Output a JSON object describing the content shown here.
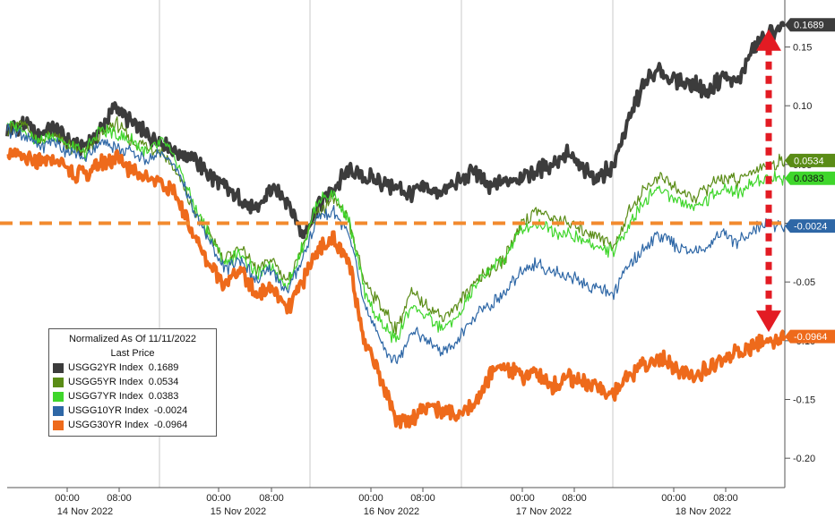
{
  "chart_data": {
    "type": "line",
    "legend": {
      "title": "Normalized As Of 11/11/2022",
      "subtitle": "Last Price",
      "placement": "bottom-left"
    },
    "x_ticks": {
      "time_labels": [
        "00:00",
        "08:00",
        "00:00",
        "08:00",
        "00:00",
        "08:00",
        "00:00",
        "08:00",
        "00:00",
        "08:00"
      ],
      "date_labels": [
        "14 Nov 2022",
        "15 Nov 2022",
        "16 Nov 2022",
        "17 Nov 2022",
        "18 Nov 2022"
      ]
    },
    "y_ticks": [
      "0.15",
      "0.10",
      "0.05",
      "0",
      "-0.05",
      "-0.10",
      "-0.15",
      "-0.20"
    ],
    "y_tick_values": [
      0.15,
      0.1,
      0.05,
      0,
      -0.05,
      -0.1,
      -0.15,
      -0.2
    ],
    "ylim": [
      -0.225,
      0.19
    ],
    "grid": "vertical at day boundaries",
    "reference_line": {
      "value": 0,
      "color": "#F28A2E",
      "style": "dashed"
    },
    "annotation": "red dotted double-headed arrow spanning 30YR to 2YR last values",
    "series": [
      {
        "name": "USGG2YR Index",
        "last": "0.1689",
        "color": "#3C3C3C",
        "x": [
          0,
          0.02,
          0.04,
          0.06,
          0.08,
          0.1,
          0.12,
          0.14,
          0.16,
          0.18,
          0.2,
          0.22,
          0.24,
          0.26,
          0.28,
          0.3,
          0.32,
          0.34,
          0.36,
          0.38,
          0.4,
          0.42,
          0.44,
          0.46,
          0.48,
          0.5,
          0.52,
          0.54,
          0.56,
          0.58,
          0.6,
          0.62,
          0.64,
          0.66,
          0.68,
          0.7,
          0.72,
          0.74,
          0.76,
          0.78,
          0.8,
          0.82,
          0.84,
          0.86,
          0.88,
          0.9,
          0.92,
          0.94,
          0.96,
          0.98,
          1.0
        ],
        "y": [
          0.08,
          0.085,
          0.075,
          0.08,
          0.07,
          0.065,
          0.08,
          0.1,
          0.085,
          0.075,
          0.07,
          0.06,
          0.055,
          0.04,
          0.03,
          0.02,
          0.01,
          0.03,
          0.02,
          -0.01,
          0.015,
          0.03,
          0.045,
          0.04,
          0.035,
          0.03,
          0.025,
          0.03,
          0.025,
          0.035,
          0.045,
          0.03,
          0.035,
          0.04,
          0.045,
          0.05,
          0.06,
          0.045,
          0.04,
          0.05,
          0.09,
          0.12,
          0.13,
          0.12,
          0.12,
          0.11,
          0.125,
          0.12,
          0.15,
          0.16,
          0.1689
        ]
      },
      {
        "name": "USGG5YR Index",
        "last": "0.0534",
        "color": "#5A8C16",
        "x": [
          0,
          0.02,
          0.04,
          0.06,
          0.08,
          0.1,
          0.12,
          0.14,
          0.16,
          0.18,
          0.2,
          0.22,
          0.24,
          0.26,
          0.28,
          0.3,
          0.32,
          0.34,
          0.36,
          0.38,
          0.4,
          0.42,
          0.44,
          0.46,
          0.48,
          0.5,
          0.52,
          0.54,
          0.56,
          0.58,
          0.6,
          0.62,
          0.64,
          0.66,
          0.68,
          0.7,
          0.72,
          0.74,
          0.76,
          0.78,
          0.8,
          0.82,
          0.84,
          0.86,
          0.88,
          0.9,
          0.92,
          0.94,
          0.96,
          0.98,
          1.0
        ],
        "y": [
          0.08,
          0.085,
          0.07,
          0.075,
          0.065,
          0.06,
          0.075,
          0.085,
          0.07,
          0.065,
          0.06,
          0.04,
          0.01,
          -0.01,
          -0.03,
          -0.02,
          -0.04,
          -0.03,
          -0.05,
          -0.02,
          0.01,
          0.02,
          0.0,
          -0.05,
          -0.07,
          -0.09,
          -0.06,
          -0.07,
          -0.08,
          -0.07,
          -0.05,
          -0.04,
          -0.03,
          0.0,
          0.01,
          0.005,
          0.0,
          -0.005,
          -0.01,
          -0.02,
          0.01,
          0.03,
          0.04,
          0.03,
          0.02,
          0.03,
          0.04,
          0.035,
          0.045,
          0.05,
          0.0534
        ]
      },
      {
        "name": "USGG7YR Index",
        "last": "0.0383",
        "color": "#3FD62B",
        "x": [
          0,
          0.02,
          0.04,
          0.06,
          0.08,
          0.1,
          0.12,
          0.14,
          0.16,
          0.18,
          0.2,
          0.22,
          0.24,
          0.26,
          0.28,
          0.3,
          0.32,
          0.34,
          0.36,
          0.38,
          0.4,
          0.42,
          0.44,
          0.46,
          0.48,
          0.5,
          0.52,
          0.54,
          0.56,
          0.58,
          0.6,
          0.62,
          0.64,
          0.66,
          0.68,
          0.7,
          0.72,
          0.74,
          0.76,
          0.78,
          0.8,
          0.82,
          0.84,
          0.86,
          0.88,
          0.9,
          0.92,
          0.94,
          0.96,
          0.98,
          1.0
        ],
        "y": [
          0.085,
          0.08,
          0.07,
          0.075,
          0.065,
          0.06,
          0.08,
          0.075,
          0.07,
          0.06,
          0.07,
          0.05,
          0.015,
          -0.01,
          -0.035,
          -0.025,
          -0.045,
          -0.035,
          -0.055,
          -0.02,
          0.02,
          0.025,
          0.0,
          -0.06,
          -0.085,
          -0.1,
          -0.07,
          -0.08,
          -0.09,
          -0.08,
          -0.055,
          -0.04,
          -0.03,
          -0.005,
          0.0,
          -0.005,
          -0.01,
          -0.015,
          -0.02,
          -0.025,
          0.0,
          0.02,
          0.03,
          0.02,
          0.015,
          0.02,
          0.03,
          0.025,
          0.035,
          0.04,
          0.0383
        ]
      },
      {
        "name": "USGG10YR Index",
        "last": "-0.0024",
        "color": "#2E67A6",
        "x": [
          0,
          0.02,
          0.04,
          0.06,
          0.08,
          0.1,
          0.12,
          0.14,
          0.16,
          0.18,
          0.2,
          0.22,
          0.24,
          0.26,
          0.28,
          0.3,
          0.32,
          0.34,
          0.36,
          0.38,
          0.4,
          0.42,
          0.44,
          0.46,
          0.48,
          0.5,
          0.52,
          0.54,
          0.56,
          0.58,
          0.6,
          0.62,
          0.64,
          0.66,
          0.68,
          0.7,
          0.72,
          0.74,
          0.76,
          0.78,
          0.8,
          0.82,
          0.84,
          0.86,
          0.88,
          0.9,
          0.92,
          0.94,
          0.96,
          0.98,
          1.0
        ],
        "y": [
          0.08,
          0.075,
          0.065,
          0.07,
          0.06,
          0.055,
          0.07,
          0.065,
          0.06,
          0.055,
          0.06,
          0.045,
          0.01,
          -0.015,
          -0.04,
          -0.03,
          -0.05,
          -0.04,
          -0.06,
          -0.03,
          0.005,
          0.01,
          -0.01,
          -0.07,
          -0.1,
          -0.12,
          -0.09,
          -0.1,
          -0.11,
          -0.1,
          -0.08,
          -0.07,
          -0.06,
          -0.04,
          -0.035,
          -0.04,
          -0.045,
          -0.05,
          -0.055,
          -0.06,
          -0.035,
          -0.02,
          -0.01,
          -0.02,
          -0.025,
          -0.02,
          -0.01,
          -0.015,
          -0.005,
          0.0,
          -0.0024
        ]
      },
      {
        "name": "USGG30YR Index",
        "last": "-0.0964",
        "color": "#EE6A1B",
        "x": [
          0,
          0.02,
          0.04,
          0.06,
          0.08,
          0.1,
          0.12,
          0.14,
          0.16,
          0.18,
          0.2,
          0.22,
          0.24,
          0.26,
          0.28,
          0.3,
          0.32,
          0.34,
          0.36,
          0.38,
          0.4,
          0.42,
          0.44,
          0.46,
          0.48,
          0.5,
          0.52,
          0.54,
          0.56,
          0.58,
          0.6,
          0.62,
          0.64,
          0.66,
          0.68,
          0.7,
          0.72,
          0.74,
          0.76,
          0.78,
          0.8,
          0.82,
          0.84,
          0.86,
          0.88,
          0.9,
          0.92,
          0.94,
          0.96,
          0.98,
          1.0
        ],
        "y": [
          0.06,
          0.055,
          0.05,
          0.055,
          0.045,
          0.04,
          0.05,
          0.055,
          0.045,
          0.04,
          0.035,
          0.02,
          -0.01,
          -0.035,
          -0.05,
          -0.04,
          -0.06,
          -0.055,
          -0.075,
          -0.05,
          -0.02,
          -0.015,
          -0.035,
          -0.1,
          -0.13,
          -0.17,
          -0.165,
          -0.155,
          -0.16,
          -0.165,
          -0.155,
          -0.13,
          -0.12,
          -0.13,
          -0.125,
          -0.14,
          -0.13,
          -0.135,
          -0.14,
          -0.145,
          -0.13,
          -0.12,
          -0.115,
          -0.125,
          -0.13,
          -0.125,
          -0.115,
          -0.11,
          -0.105,
          -0.1,
          -0.0964
        ]
      }
    ]
  }
}
